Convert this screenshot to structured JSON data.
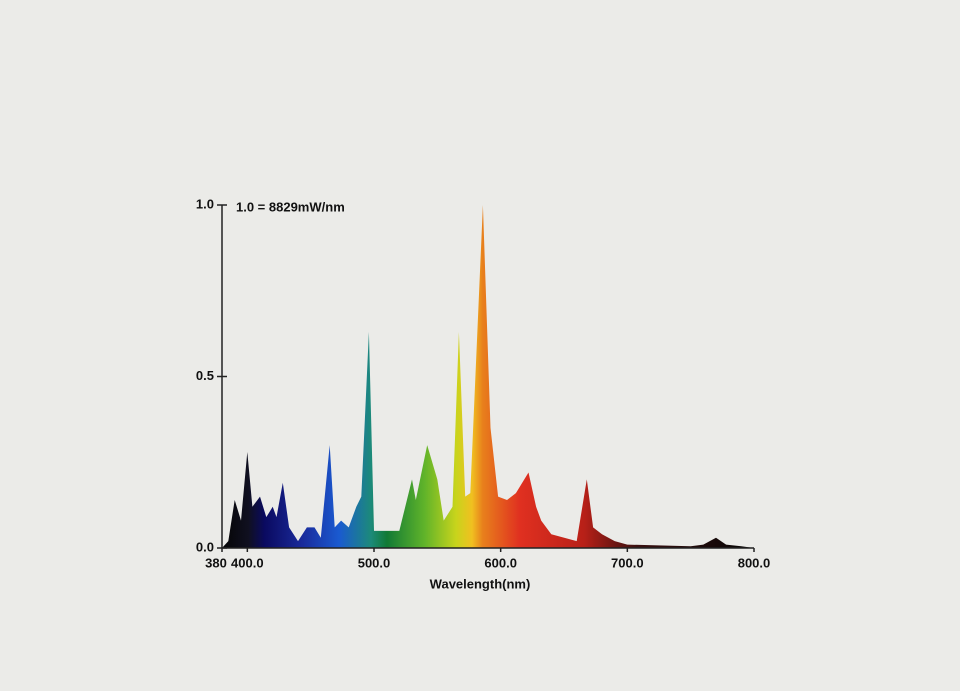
{
  "chart_data": {
    "type": "area",
    "annotation": "1.0 = 8829mW/nm",
    "x_label": "Wavelength(nm)",
    "x": [
      380,
      385,
      390,
      395,
      400,
      404,
      410,
      415,
      420,
      423,
      428,
      433,
      440,
      447,
      453,
      458,
      465,
      469,
      474,
      480,
      486,
      490,
      496,
      500,
      504,
      520,
      530,
      533,
      542,
      550,
      555,
      562,
      567,
      572,
      576,
      586,
      592,
      598,
      605,
      612,
      622,
      628,
      632,
      640,
      660,
      668,
      673,
      680,
      690,
      700,
      750,
      760,
      770,
      778,
      790,
      800
    ],
    "values": [
      0,
      0.02,
      0.14,
      0.08,
      0.28,
      0.12,
      0.15,
      0.09,
      0.12,
      0.09,
      0.19,
      0.06,
      0.02,
      0.06,
      0.06,
      0.03,
      0.3,
      0.06,
      0.08,
      0.06,
      0.12,
      0.15,
      0.63,
      0.05,
      0.05,
      0.05,
      0.2,
      0.14,
      0.3,
      0.2,
      0.08,
      0.12,
      0.63,
      0.15,
      0.16,
      1.0,
      0.35,
      0.15,
      0.14,
      0.16,
      0.22,
      0.12,
      0.08,
      0.04,
      0.02,
      0.2,
      0.06,
      0.04,
      0.02,
      0.01,
      0.005,
      0.01,
      0.03,
      0.01,
      0.005,
      0
    ],
    "xlim": [
      380,
      800
    ],
    "ylim": [
      0,
      1
    ],
    "xticks": [
      {
        "value": 380,
        "label": "380"
      },
      {
        "value": 400,
        "label": "400.0"
      },
      {
        "value": 500,
        "label": "500.0"
      },
      {
        "value": 600,
        "label": "600.0"
      },
      {
        "value": 700,
        "label": "700.0"
      },
      {
        "value": 800,
        "label": "800.0"
      }
    ],
    "yticks": [
      {
        "value": 0,
        "label": "0.0"
      },
      0.5,
      {
        "value": 1,
        "label": "1.0"
      }
    ]
  }
}
